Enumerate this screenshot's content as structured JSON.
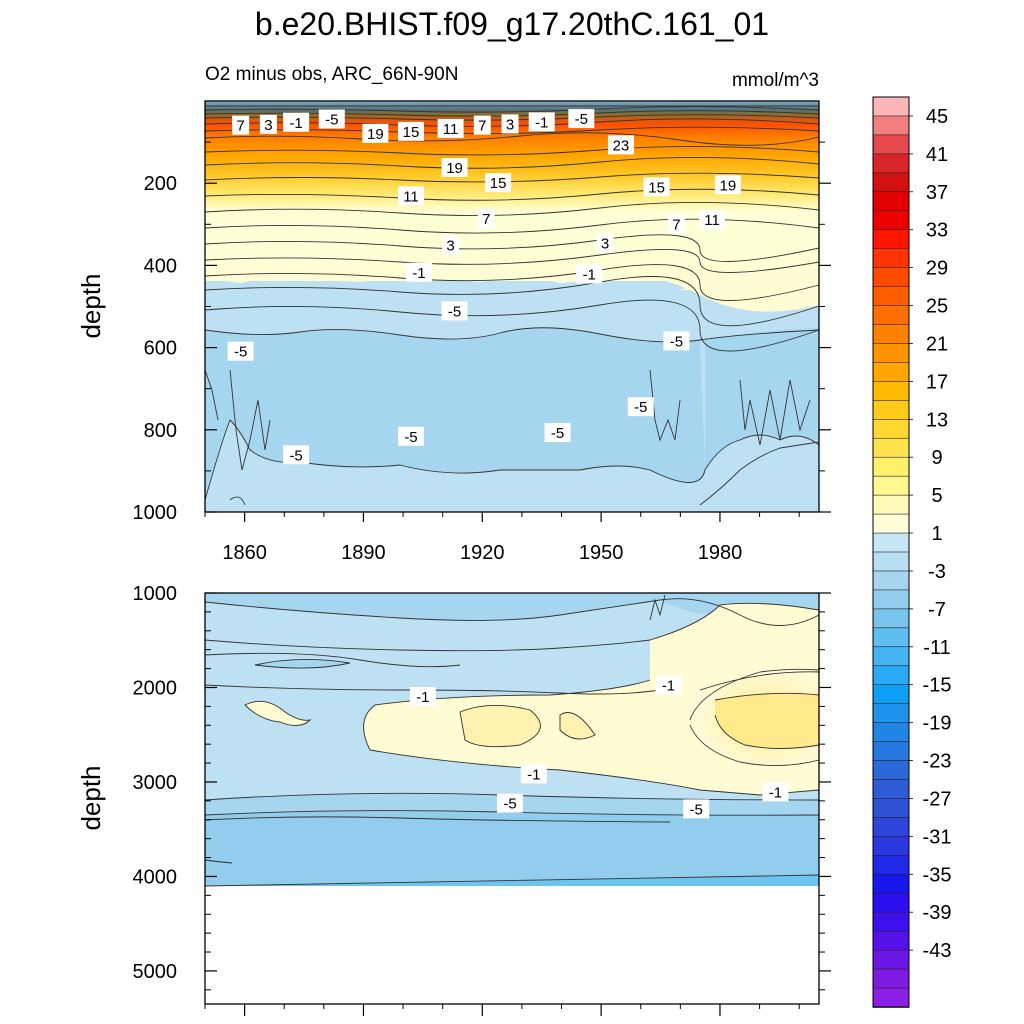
{
  "chart_data": [
    {
      "type": "contour",
      "title": "b.e20.BHIST.f09_g17.20thC.161_01",
      "subtitle_left": "O2 minus obs, ARC_66N-90N",
      "units": "mmol/m^3",
      "ylabel": "depth",
      "xlim": [
        1850,
        2005
      ],
      "x_ticks": [
        1860,
        1890,
        1920,
        1950,
        1980
      ],
      "x_tick_labels": [
        "1860",
        "1890",
        "1920",
        "1950",
        "1980"
      ],
      "ylim": [
        0,
        1000
      ],
      "y_ticks": [
        200,
        400,
        600,
        800,
        1000
      ],
      "y_tick_labels": [
        "200",
        "400",
        "600",
        "800",
        "1000"
      ],
      "depth_profile": [
        {
          "depth": 25,
          "value": -5
        },
        {
          "depth": 60,
          "value": 12
        },
        {
          "depth": 110,
          "value": 23
        },
        {
          "depth": 170,
          "value": 19
        },
        {
          "depth": 230,
          "value": 13
        },
        {
          "depth": 300,
          "value": 7
        },
        {
          "depth": 360,
          "value": 3
        },
        {
          "depth": 420,
          "value": 0
        },
        {
          "depth": 470,
          "value": -2
        },
        {
          "depth": 550,
          "value": -4
        },
        {
          "depth": 700,
          "value": -6
        },
        {
          "depth": 950,
          "value": -4
        }
      ],
      "contour_labels": [
        {
          "text": "7",
          "x": 1859,
          "depth": 60
        },
        {
          "text": "3",
          "x": 1866,
          "depth": 58
        },
        {
          "text": "-1",
          "x": 1873,
          "depth": 53
        },
        {
          "text": "-5",
          "x": 1882,
          "depth": 45
        },
        {
          "text": "19",
          "x": 1893,
          "depth": 80
        },
        {
          "text": "15",
          "x": 1902,
          "depth": 75
        },
        {
          "text": "11",
          "x": 1912,
          "depth": 68
        },
        {
          "text": "7",
          "x": 1920,
          "depth": 60
        },
        {
          "text": "3",
          "x": 1927,
          "depth": 57
        },
        {
          "text": "-1",
          "x": 1935,
          "depth": 52
        },
        {
          "text": "-5",
          "x": 1945,
          "depth": 44
        },
        {
          "text": "23",
          "x": 1955,
          "depth": 108
        },
        {
          "text": "19",
          "x": 1913,
          "depth": 163
        },
        {
          "text": "15",
          "x": 1924,
          "depth": 200
        },
        {
          "text": "15",
          "x": 1964,
          "depth": 210
        },
        {
          "text": "19",
          "x": 1982,
          "depth": 205
        },
        {
          "text": "11",
          "x": 1902,
          "depth": 232
        },
        {
          "text": "7",
          "x": 1921,
          "depth": 287
        },
        {
          "text": "11",
          "x": 1978,
          "depth": 290
        },
        {
          "text": "7",
          "x": 1969,
          "depth": 300
        },
        {
          "text": "3",
          "x": 1912,
          "depth": 352
        },
        {
          "text": "3",
          "x": 1951,
          "depth": 347
        },
        {
          "text": "-1",
          "x": 1904,
          "depth": 418
        },
        {
          "text": "-1",
          "x": 1947,
          "depth": 422
        },
        {
          "text": "-5",
          "x": 1913,
          "depth": 512
        },
        {
          "text": "-5",
          "x": 1969,
          "depth": 585
        },
        {
          "text": "-5",
          "x": 1859,
          "depth": 610
        },
        {
          "text": "-5",
          "x": 1960,
          "depth": 745
        },
        {
          "text": "-5",
          "x": 1873,
          "depth": 862
        },
        {
          "text": "-5",
          "x": 1902,
          "depth": 817
        },
        {
          "text": "-5",
          "x": 1939,
          "depth": 808
        }
      ]
    },
    {
      "type": "contour",
      "ylabel": "depth",
      "xlim": [
        1850,
        2005
      ],
      "ylim": [
        1000,
        5350
      ],
      "y_ticks": [
        1000,
        2000,
        3000,
        4000,
        5000
      ],
      "y_tick_labels": [
        "1000",
        "2000",
        "3000",
        "4000",
        "5000"
      ],
      "no_data_below_depth": 4120,
      "contour_labels": [
        {
          "text": "-1",
          "x": 1905,
          "depth": 2100
        },
        {
          "text": "-1",
          "x": 1967,
          "depth": 1980
        },
        {
          "text": "-1",
          "x": 1933,
          "depth": 2920
        },
        {
          "text": "-1",
          "x": 1994,
          "depth": 3110
        },
        {
          "text": "-5",
          "x": 1927,
          "depth": 3230
        },
        {
          "text": "-5",
          "x": 1974,
          "depth": 3290
        }
      ]
    }
  ],
  "colorbar": {
    "labels": [
      "45",
      "41",
      "37",
      "33",
      "29",
      "25",
      "21",
      "17",
      "13",
      "9",
      "5",
      "1",
      "-3",
      "-7",
      "-11",
      "-15",
      "-19",
      "-23",
      "-27",
      "-31",
      "-35",
      "-39",
      "-43"
    ],
    "colors": [
      "#fbb5b5",
      "#f17f80",
      "#e5494b",
      "#d9252a",
      "#d30f0f",
      "#e20000",
      "#ee0000",
      "#ff1500",
      "#ff3300",
      "#ff4b00",
      "#ff5d00",
      "#ff6e00",
      "#ff8100",
      "#ff9400",
      "#ffa700",
      "#ffb900",
      "#ffca1a",
      "#ffd733",
      "#ffe24d",
      "#fff06b",
      "#fff78f",
      "#fffab8",
      "#fffdd8",
      "#c7e6f4",
      "#b8def2",
      "#a6d6ef",
      "#92cdee",
      "#77c4ee",
      "#5fbdf0",
      "#45b4f3",
      "#2aa9f4",
      "#0ba0f4",
      "#1e92ed",
      "#2185e8",
      "#2777e1",
      "#2b69da",
      "#2f5bd5",
      "#3050d8",
      "#2f44db",
      "#2a36e0",
      "#2028e8",
      "#1717ee",
      "#2b10f1",
      "#3f10ee",
      "#5512e8",
      "#6a16e4",
      "#7f1ae1",
      "#8b1fe6"
    ]
  }
}
